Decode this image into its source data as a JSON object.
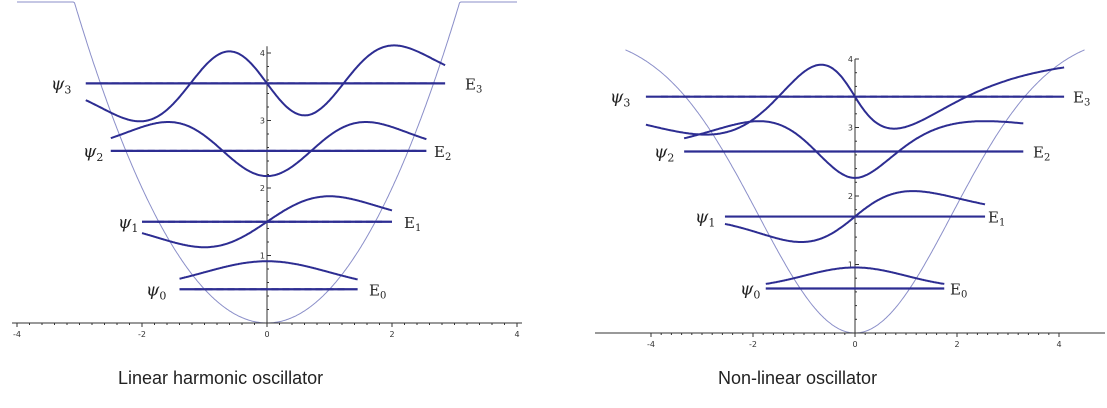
{
  "colors": {
    "potential": "#8b8fc9",
    "curve": "#2d2d92",
    "axis": "#333333",
    "text": "#222222"
  },
  "figures": [
    {
      "caption": "Linear harmonic oscillator",
      "kind": "harmonic",
      "x_ticks": [
        "-4",
        "-2",
        "0",
        "2",
        "4"
      ],
      "y_ticks": [
        "1",
        "2",
        "3",
        "4"
      ],
      "levels": [
        {
          "psi_symbol": "ψ",
          "psi_index": "0",
          "e_symbol": "E",
          "e_index": "0",
          "n": 0
        },
        {
          "psi_symbol": "ψ",
          "psi_index": "1",
          "e_symbol": "E",
          "e_index": "1",
          "n": 1
        },
        {
          "psi_symbol": "ψ",
          "psi_index": "2",
          "e_symbol": "E",
          "e_index": "2",
          "n": 2
        },
        {
          "psi_symbol": "ψ",
          "psi_index": "3",
          "e_symbol": "E",
          "e_index": "3",
          "n": 3
        }
      ]
    },
    {
      "caption": "Non-linear oscillator",
      "kind": "nonlinear",
      "x_ticks": [
        "-4",
        "-2",
        "0",
        "2",
        "4"
      ],
      "y_ticks": [
        "1",
        "2",
        "3",
        "4"
      ],
      "levels": [
        {
          "psi_symbol": "ψ",
          "psi_index": "0",
          "e_symbol": "E",
          "e_index": "0",
          "n": 0
        },
        {
          "psi_symbol": "ψ",
          "psi_index": "1",
          "e_symbol": "E",
          "e_index": "1",
          "n": 1
        },
        {
          "psi_symbol": "ψ",
          "psi_index": "2",
          "e_symbol": "E",
          "e_index": "2",
          "n": 2
        },
        {
          "psi_symbol": "ψ",
          "psi_index": "3",
          "e_symbol": "E",
          "e_index": "3",
          "n": 3
        }
      ]
    }
  ]
}
